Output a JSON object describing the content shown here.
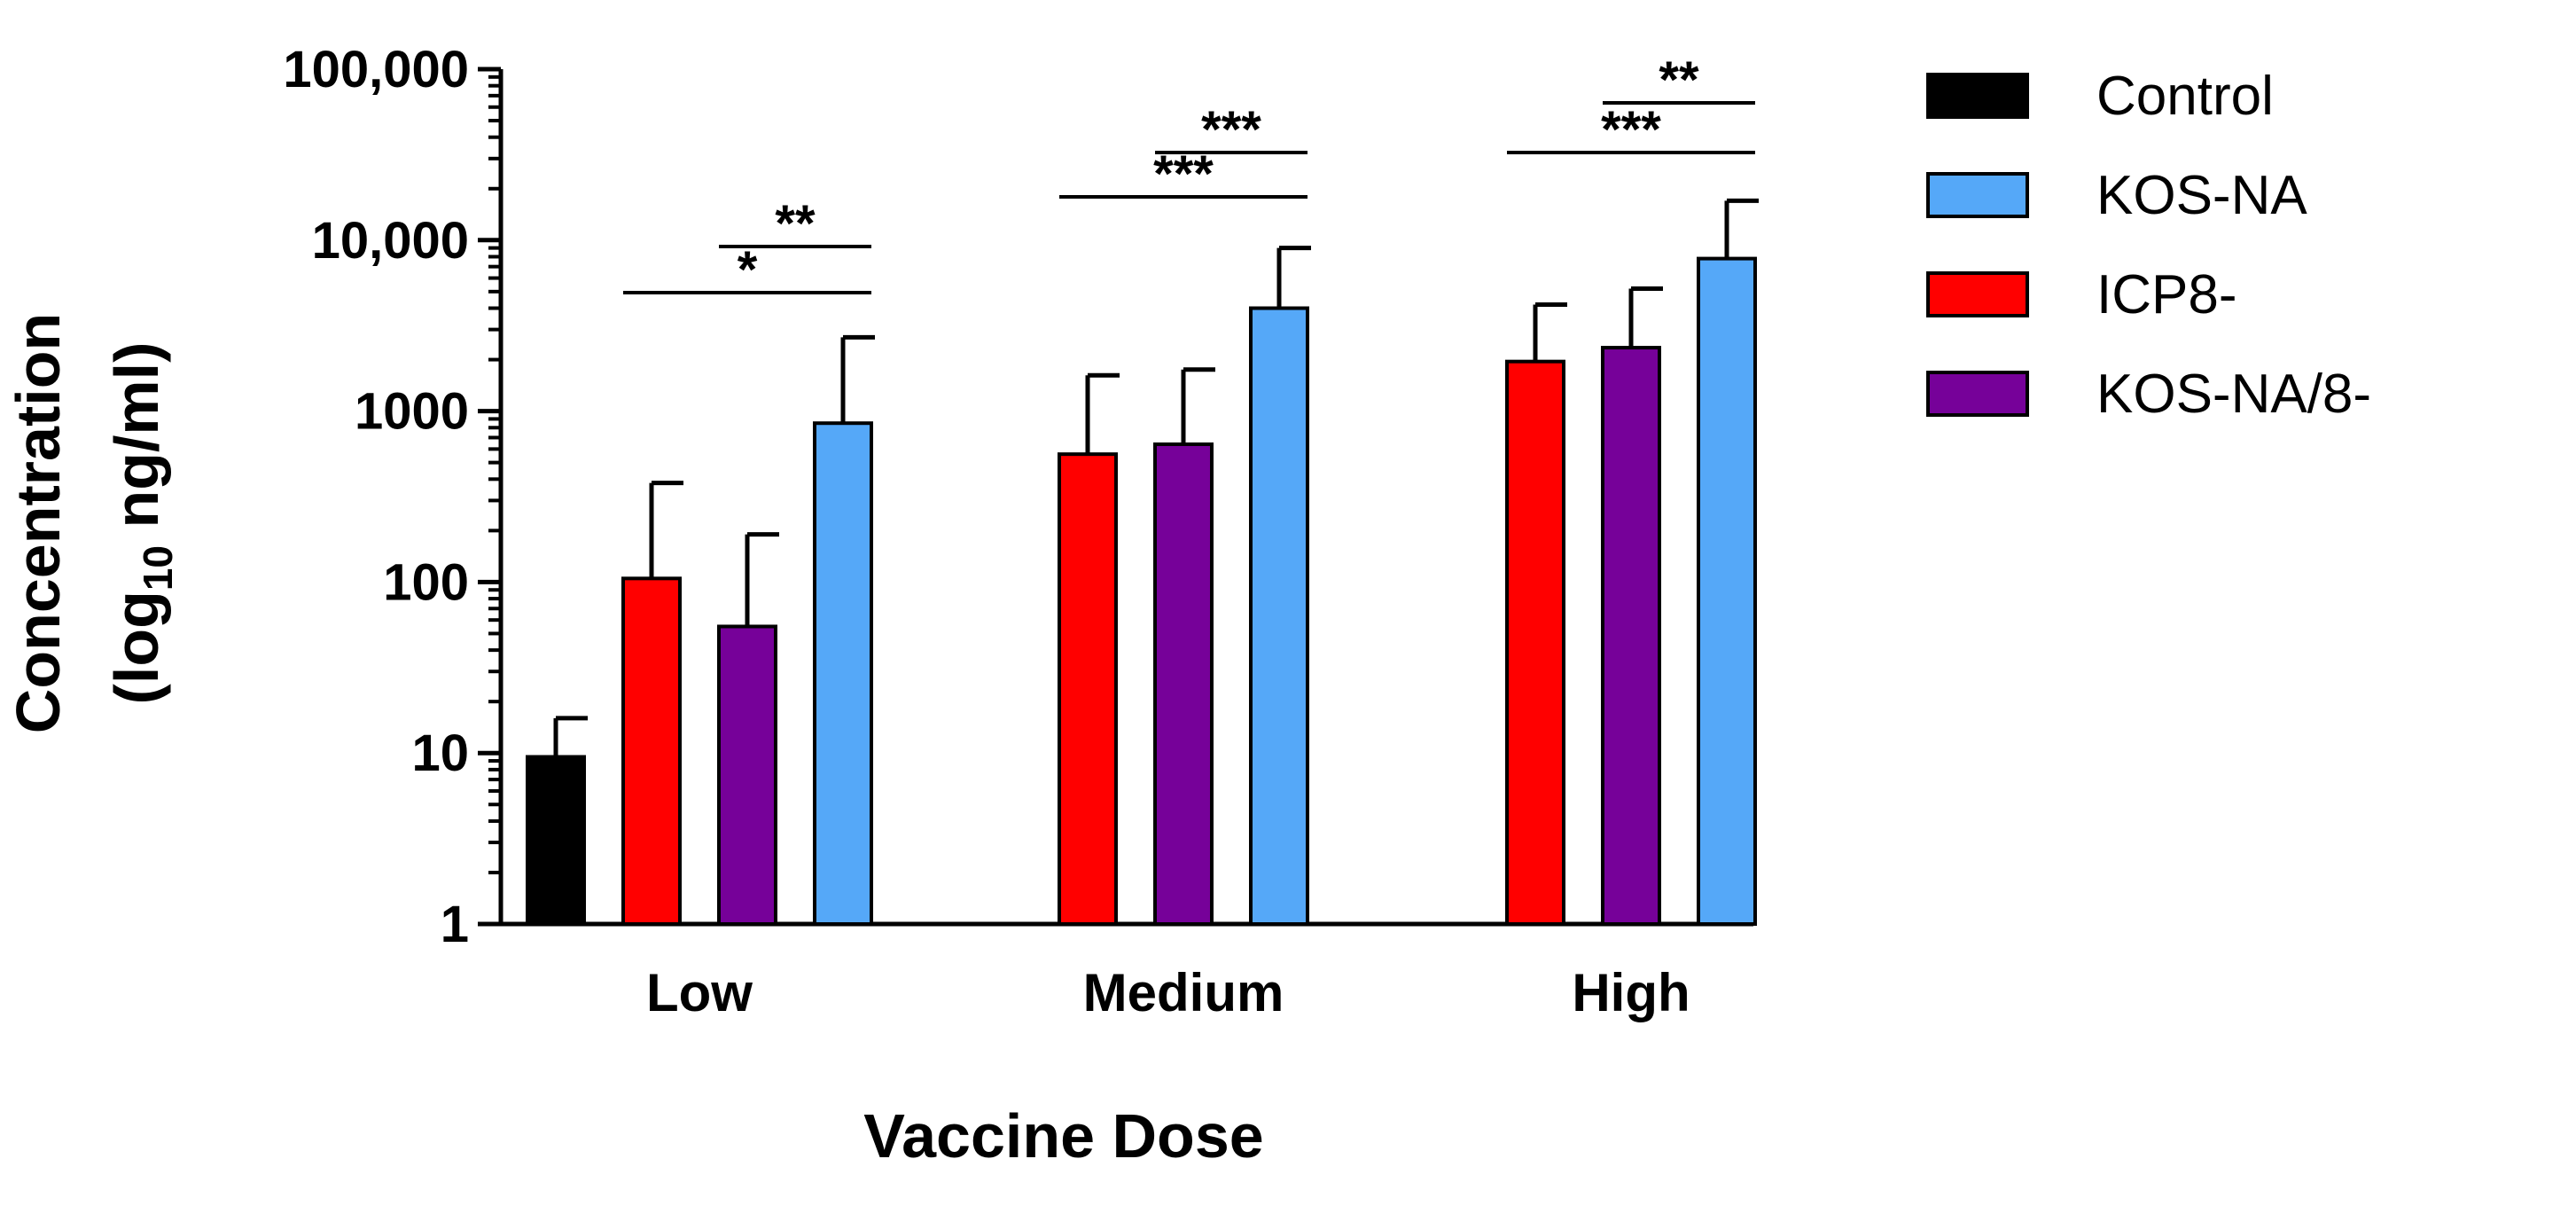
{
  "chart_data": {
    "type": "bar",
    "yscale": "log",
    "ylim": [
      1,
      100000
    ],
    "xlabel": "Vaccine Dose",
    "ylabel_line1": "Concentration",
    "ylabel_line2_pre": "(log",
    "ylabel_line2_sub": "10",
    "ylabel_line2_post": " ng/ml)",
    "yticks": [
      1,
      10,
      100,
      1000,
      10000,
      100000
    ],
    "ytick_labels": [
      "1",
      "10",
      "100",
      "1000",
      "10,000",
      "100,000"
    ],
    "categories": [
      "Low",
      "Medium",
      "High"
    ],
    "series": [
      {
        "name": "Control",
        "color": "#000000",
        "values": [
          9.5,
          null,
          null
        ],
        "errors": [
          16,
          null,
          null
        ]
      },
      {
        "name": "ICP8-",
        "color": "#ff0000",
        "values": [
          105,
          560,
          1950
        ],
        "errors": [
          380,
          1620,
          4200
        ]
      },
      {
        "name": "KOS-NA/8-",
        "color": "#760199",
        "values": [
          55,
          640,
          2350
        ],
        "errors": [
          190,
          1750,
          5200
        ]
      },
      {
        "name": "KOS-NA",
        "color": "#55a8f8",
        "values": [
          850,
          4000,
          7800
        ],
        "errors": [
          2700,
          9000,
          17000
        ]
      }
    ],
    "legend": [
      {
        "name": "Control",
        "color": "#000000"
      },
      {
        "name": "KOS-NA",
        "color": "#55a8f8"
      },
      {
        "name": "ICP8-",
        "color": "#ff0000"
      },
      {
        "name": "KOS-NA/8-",
        "color": "#760199"
      }
    ],
    "legend_position": "right",
    "significance": [
      {
        "category": "Low",
        "from": "ICP8-",
        "to": "KOS-NA",
        "label": "*"
      },
      {
        "category": "Low",
        "from": "KOS-NA/8-",
        "to": "KOS-NA",
        "label": "**"
      },
      {
        "category": "Medium",
        "from": "ICP8-",
        "to": "KOS-NA",
        "label": "***"
      },
      {
        "category": "Medium",
        "from": "KOS-NA/8-",
        "to": "KOS-NA",
        "label": "***"
      },
      {
        "category": "High",
        "from": "ICP8-",
        "to": "KOS-NA",
        "label": "***"
      },
      {
        "category": "High",
        "from": "KOS-NA/8-",
        "to": "KOS-NA",
        "label": "**"
      }
    ]
  }
}
